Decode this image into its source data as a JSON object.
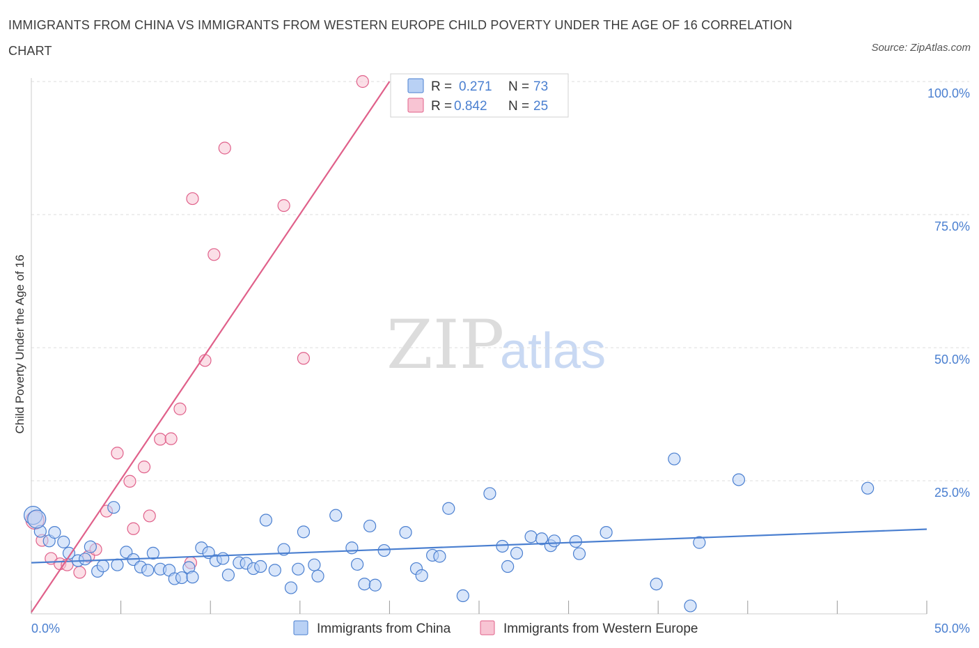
{
  "title": "IMMIGRANTS FROM CHINA VS IMMIGRANTS FROM WESTERN EUROPE CHILD POVERTY UNDER THE AGE OF 16 CORRELATION CHART",
  "source": "Source: ZipAtlas.com",
  "watermark": {
    "zip": "ZIP",
    "atlas": "atlas"
  },
  "colors": {
    "china": "#4a7fd0",
    "china_fill": "#b9d1f5",
    "western_europe": "#e0608a",
    "western_europe_fill": "#f8c4d3",
    "tick_text": "#4a7fd0",
    "grid": "#dddddd"
  },
  "legend": {
    "r_label": "R =",
    "n_label": "N =",
    "rows": [
      {
        "r": "0.271",
        "n": "73",
        "series": "china"
      },
      {
        "r": "0.842",
        "n": "25",
        "series": "western_europe"
      }
    ]
  },
  "chart_data": {
    "type": "scatter",
    "title": "IMMIGRANTS FROM CHINA VS IMMIGRANTS FROM WESTERN EUROPE CHILD POVERTY UNDER THE AGE OF 16 CORRELATION CHART",
    "xlabel": "",
    "ylabel": "Child Poverty Under the Age of 16",
    "xlim": [
      0,
      50
    ],
    "ylim": [
      0,
      100
    ],
    "x_tick_labels": [
      "0.0%",
      "50.0%"
    ],
    "y_tick_labels": [
      "100.0%",
      "75.0%",
      "50.0%",
      "25.0%"
    ],
    "y_ticks": [
      100,
      75,
      50,
      25
    ],
    "grid": true,
    "legend_position": "top-center",
    "series": [
      {
        "name": "Immigrants from China",
        "color": "#4a7fd0",
        "trend": [
          [
            0,
            9.6
          ],
          [
            50,
            15.9
          ]
        ],
        "points": [
          [
            0.1,
            18.5
          ],
          [
            0.5,
            15.5
          ],
          [
            1.0,
            13.7
          ],
          [
            1.3,
            15.3
          ],
          [
            1.8,
            13.5
          ],
          [
            2.1,
            11.4
          ],
          [
            2.6,
            10.0
          ],
          [
            3.0,
            10.3
          ],
          [
            3.3,
            12.6
          ],
          [
            3.7,
            8.0
          ],
          [
            4.0,
            9.0
          ],
          [
            4.6,
            20.0
          ],
          [
            4.8,
            9.2
          ],
          [
            5.3,
            11.6
          ],
          [
            5.7,
            10.2
          ],
          [
            6.1,
            8.8
          ],
          [
            6.5,
            8.2
          ],
          [
            6.8,
            11.4
          ],
          [
            7.2,
            8.4
          ],
          [
            7.7,
            8.2
          ],
          [
            8.0,
            6.6
          ],
          [
            8.4,
            6.8
          ],
          [
            8.8,
            8.7
          ],
          [
            9.0,
            6.9
          ],
          [
            9.5,
            12.4
          ],
          [
            9.9,
            11.5
          ],
          [
            10.3,
            10.0
          ],
          [
            10.7,
            10.4
          ],
          [
            11.0,
            7.3
          ],
          [
            11.6,
            9.6
          ],
          [
            12.0,
            9.5
          ],
          [
            12.4,
            8.5
          ],
          [
            12.8,
            8.9
          ],
          [
            13.1,
            17.6
          ],
          [
            13.6,
            8.2
          ],
          [
            14.1,
            12.1
          ],
          [
            14.5,
            4.9
          ],
          [
            14.9,
            8.4
          ],
          [
            15.2,
            15.4
          ],
          [
            15.8,
            9.2
          ],
          [
            16.0,
            7.1
          ],
          [
            17.0,
            18.5
          ],
          [
            17.9,
            12.4
          ],
          [
            18.2,
            9.3
          ],
          [
            18.6,
            5.6
          ],
          [
            18.9,
            16.5
          ],
          [
            19.2,
            5.4
          ],
          [
            19.7,
            11.9
          ],
          [
            20.9,
            15.3
          ],
          [
            21.5,
            8.5
          ],
          [
            21.8,
            7.2
          ],
          [
            22.4,
            11.0
          ],
          [
            22.8,
            10.8
          ],
          [
            23.3,
            19.8
          ],
          [
            24.1,
            3.4
          ],
          [
            25.6,
            22.6
          ],
          [
            26.3,
            12.7
          ],
          [
            26.6,
            8.9
          ],
          [
            27.1,
            11.4
          ],
          [
            27.9,
            14.5
          ],
          [
            28.5,
            14.1
          ],
          [
            29.0,
            12.8
          ],
          [
            29.2,
            13.7
          ],
          [
            30.4,
            13.6
          ],
          [
            30.6,
            11.3
          ],
          [
            32.1,
            15.3
          ],
          [
            34.9,
            5.6
          ],
          [
            35.9,
            29.1
          ],
          [
            36.8,
            1.5
          ],
          [
            37.3,
            13.4
          ],
          [
            39.5,
            25.2
          ],
          [
            46.7,
            23.6
          ],
          [
            0.3,
            17.8
          ]
        ]
      },
      {
        "name": "Immigrants from Western Europe",
        "color": "#e0608a",
        "trend": [
          [
            0,
            0.3
          ],
          [
            20.0,
            100
          ]
        ],
        "points": [
          [
            0.2,
            17.6
          ],
          [
            0.6,
            13.8
          ],
          [
            1.1,
            10.4
          ],
          [
            1.6,
            9.4
          ],
          [
            2.0,
            9.2
          ],
          [
            2.7,
            7.8
          ],
          [
            3.2,
            10.8
          ],
          [
            3.6,
            12.1
          ],
          [
            4.2,
            19.3
          ],
          [
            4.8,
            30.2
          ],
          [
            5.5,
            24.9
          ],
          [
            5.7,
            16.0
          ],
          [
            6.3,
            27.6
          ],
          [
            6.6,
            18.4
          ],
          [
            7.2,
            32.8
          ],
          [
            7.8,
            32.9
          ],
          [
            8.3,
            38.5
          ],
          [
            8.9,
            9.6
          ],
          [
            9.0,
            78.0
          ],
          [
            9.7,
            47.6
          ],
          [
            10.2,
            67.5
          ],
          [
            10.8,
            87.5
          ],
          [
            14.1,
            76.7
          ],
          [
            15.2,
            48.0
          ],
          [
            18.5,
            100.0
          ]
        ]
      }
    ]
  },
  "bottom_legend": [
    {
      "label": "Immigrants from China",
      "series": "china"
    },
    {
      "label": "Immigrants from Western Europe",
      "series": "western_europe"
    }
  ]
}
